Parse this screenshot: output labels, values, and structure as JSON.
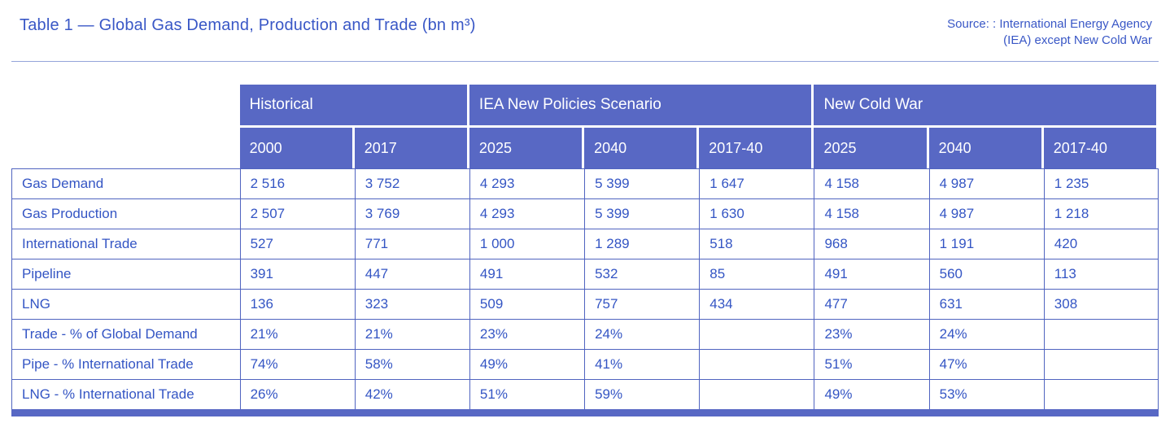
{
  "header": {
    "title": "Table 1 — Global Gas Demand, Production and Trade (bn m³)",
    "source_line1": "Source: : International Energy Agency",
    "source_line2": "(IEA) except New Cold War"
  },
  "table": {
    "groups": [
      {
        "label": "Historical"
      },
      {
        "label": "IEA New Policies Scenario"
      },
      {
        "label": "New Cold War"
      }
    ],
    "columns": [
      "2000",
      "2017",
      "2025",
      "2040",
      "2017-40",
      "2025",
      "2040",
      "2017-40"
    ],
    "rows": [
      {
        "label": "Gas Demand",
        "values": [
          "2 516",
          "3 752",
          "4 293",
          "5 399",
          "1 647",
          "4 158",
          "4 987",
          "1 235"
        ]
      },
      {
        "label": "Gas Production",
        "values": [
          "2 507",
          "3 769",
          "4 293",
          "5 399",
          "1 630",
          "4 158",
          "4 987",
          "1 218"
        ]
      },
      {
        "label": "International Trade",
        "values": [
          "527",
          "771",
          "1 000",
          "1 289",
          "518",
          "968",
          "1 191",
          "420"
        ]
      },
      {
        "label": "Pipeline",
        "values": [
          "391",
          "447",
          "491",
          "532",
          "85",
          "491",
          "560",
          "113"
        ]
      },
      {
        "label": "LNG",
        "values": [
          "136",
          "323",
          "509",
          "757",
          "434",
          "477",
          "631",
          "308"
        ]
      },
      {
        "label": "Trade - % of Global Demand",
        "values": [
          "21%",
          "21%",
          "23%",
          "24%",
          "",
          "23%",
          "24%",
          ""
        ]
      },
      {
        "label": "Pipe - % International Trade",
        "values": [
          "74%",
          "58%",
          "49%",
          "41%",
          "",
          "51%",
          "47%",
          ""
        ]
      },
      {
        "label": "LNG - % International Trade",
        "values": [
          "26%",
          "42%",
          "51%",
          "59%",
          "",
          "49%",
          "53%",
          ""
        ]
      }
    ]
  },
  "colors": {
    "header_fill": "#5868c4",
    "text_blue": "#3455c4",
    "border_blue": "#5064c0",
    "bottom_bar": "#5868c4"
  }
}
